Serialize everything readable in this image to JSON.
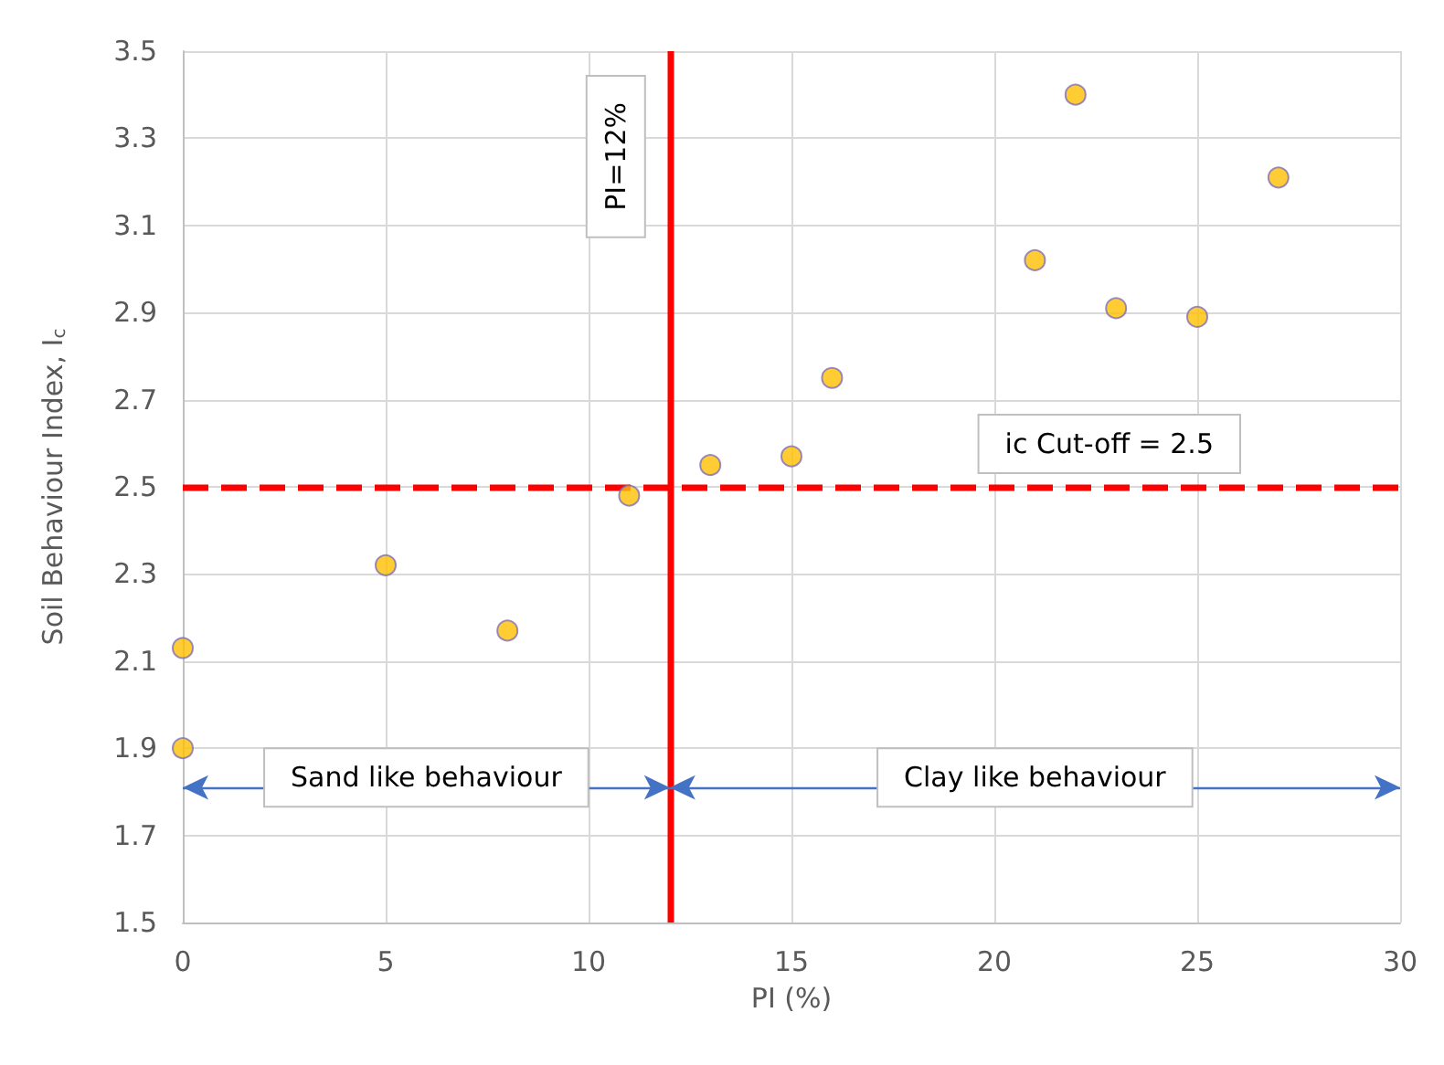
{
  "chart_data": {
    "type": "scatter",
    "xlabel": "PI (%)",
    "ylabel": "Soil Behaviour Index, I$_{c}$",
    "x": [
      0,
      0,
      5,
      8,
      11,
      13,
      15,
      16,
      21,
      22,
      23,
      25,
      27
    ],
    "series": [
      {
        "color": "#ffc000",
        "values": [
          2.13,
          1.9,
          2.32,
          2.17,
          2.48,
          2.55,
          2.57,
          2.75,
          3.02,
          3.4,
          2.91,
          2.89,
          3.21
        ]
      }
    ],
    "xlim": [
      0,
      30
    ],
    "xticks": [
      0,
      5,
      10,
      15,
      20,
      25,
      30
    ],
    "ylim": [
      1.5,
      3.5
    ],
    "yticks": [
      1.5,
      1.7,
      1.9,
      2.1,
      2.3,
      2.5,
      2.7,
      2.9,
      3.1,
      3.3,
      3.5
    ],
    "grid": true,
    "marker": "circle",
    "ref_lines": [
      {
        "axis": "x",
        "value": 12,
        "label": "PI=12%",
        "color": "#ff0000",
        "line_style": "solid"
      },
      {
        "axis": "y",
        "value": 2.5,
        "label": "ic Cut-off = 2.5",
        "color": "#ff0000",
        "line_style": "dashed"
      }
    ],
    "annotations": [
      "Sand like behaviour",
      "Clay like behaviour"
    ]
  }
}
